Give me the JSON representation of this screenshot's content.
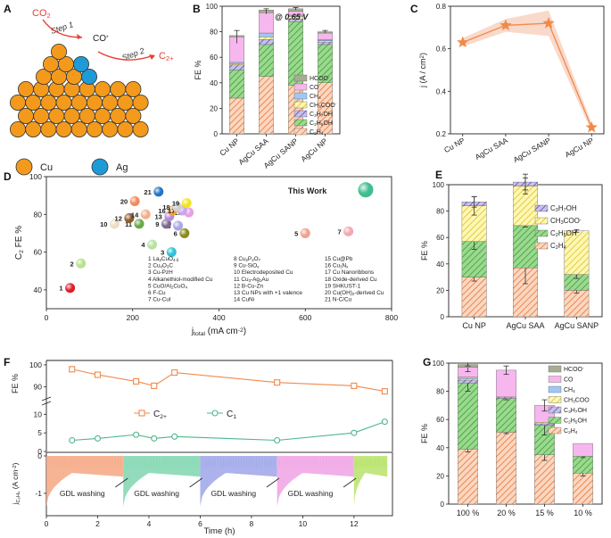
{
  "colors": {
    "orange": "#F08A4B",
    "orange_light": "#F6B58E",
    "green": "#54B94E",
    "purple": "#8A7FC9",
    "yellow": "#F2E04A",
    "blue": "#7BB5F2",
    "pink": "#F3A6E8",
    "gray": "#9DA08A",
    "cu": "#F39A1C",
    "ag": "#1E9BD7",
    "red": "#E84033",
    "c1_green": "#4DB68A"
  },
  "panelA": {
    "label": "A",
    "co2": "CO",
    "co2_sub": "2",
    "step1": "Step 1",
    "step2": "Step 2",
    "co": "CO",
    "co_sup": "*",
    "c2": "C",
    "c2_sub": "2+",
    "legend_cu": "Cu",
    "legend_ag": "Ag"
  },
  "chart_data": [
    {
      "panel": "B",
      "type": "bar",
      "stacked": true,
      "annotation": "@ 0.65 V",
      "ylabel": "FE %",
      "ylim": [
        0,
        100
      ],
      "yticks": [
        "0",
        "20",
        "40",
        "60",
        "80",
        "100"
      ],
      "categories": [
        "Cu NP",
        "AgCu SAA",
        "AgCu SANP",
        "AgCu NP"
      ],
      "series": [
        {
          "name": "C2H4",
          "label": "C",
          "sub": "2",
          "rest": "H",
          "sub2": "4",
          "values": [
            28,
            45,
            38,
            40
          ]
        },
        {
          "name": "C2H5OH",
          "label": "C",
          "sub": "2",
          "rest": "H",
          "sub2": "5",
          "tail": "OH",
          "values": [
            22,
            25,
            50,
            30
          ]
        },
        {
          "name": "C3H7OH",
          "label": "C",
          "sub": "3",
          "rest": "H",
          "sub2": "7",
          "tail": "OH",
          "values": [
            4,
            4,
            2,
            2
          ]
        },
        {
          "name": "CH3COO-",
          "label": "CH",
          "sub": "3",
          "rest": "COO",
          "sup": "-",
          "values": [
            1,
            2,
            2,
            1
          ]
        },
        {
          "name": "CH4",
          "label": "CH",
          "sub": "4",
          "values": [
            1,
            3,
            1,
            1
          ]
        },
        {
          "name": "CO",
          "label": "CO",
          "values": [
            20,
            16,
            3,
            5
          ]
        },
        {
          "name": "HCOO-",
          "label": "HCOO",
          "sup": "-",
          "values": [
            1,
            2,
            2,
            1
          ]
        }
      ]
    },
    {
      "panel": "C",
      "type": "line",
      "ylabel": "j (A / cm",
      "ylabel_sup": "2",
      "ylabel_end": ")",
      "ylim": [
        0.2,
        0.8
      ],
      "yticks": [
        "0.2",
        "0.4",
        "0.6",
        "0.8"
      ],
      "categories": [
        "Cu NP",
        "AgCu SAA",
        "AgCu SANP",
        "AgCu NP"
      ],
      "values": [
        0.63,
        0.71,
        0.72,
        0.23
      ],
      "band_low": [
        0.61,
        0.68,
        0.66,
        0.21
      ],
      "band_high": [
        0.65,
        0.74,
        0.78,
        0.25
      ]
    },
    {
      "panel": "D",
      "type": "scatter",
      "xlabel": "j",
      "xlabel_sub": "total",
      "xlabel_units": " (mA cm",
      "xlabel_sup": "-2",
      "xlabel_end": ")",
      "ylabel": "C",
      "ylabel_sub": "2",
      "ylabel_end": " FE %",
      "xlim": [
        0,
        800
      ],
      "ylim": [
        30,
        100
      ],
      "xticks": [
        "0",
        "200",
        "400",
        "600",
        "800"
      ],
      "yticks": [
        "40",
        "60",
        "80",
        "100"
      ],
      "points": [
        {
          "n": "1",
          "x": 55,
          "y": 41,
          "c": "#E01E2A"
        },
        {
          "n": "2",
          "x": 80,
          "y": 54,
          "c": "#B7E28C"
        },
        {
          "n": "3",
          "x": 290,
          "y": 60,
          "c": "#2BC3D6"
        },
        {
          "n": "4",
          "x": 245,
          "y": 64,
          "c": "#B5E2A2"
        },
        {
          "n": "5",
          "x": 600,
          "y": 70,
          "c": "#F2A091"
        },
        {
          "n": "6",
          "x": 320,
          "y": 70,
          "c": "#8A8A1E"
        },
        {
          "n": "7",
          "x": 700,
          "y": 71,
          "c": "#F4A7B0"
        },
        {
          "n": "8",
          "x": 305,
          "y": 74,
          "c": "#A7A7E6"
        },
        {
          "n": "9",
          "x": 278,
          "y": 75,
          "c": "#7A6B8E"
        },
        {
          "n": "10",
          "x": 158,
          "y": 75,
          "c": "#EFDCC2"
        },
        {
          "n": "11",
          "x": 215,
          "y": 75,
          "c": "#6AA848"
        },
        {
          "n": "12",
          "x": 192,
          "y": 78,
          "c": "#8B5A2B"
        },
        {
          "n": "13",
          "x": 285,
          "y": 79,
          "c": "#B88AD9"
        },
        {
          "n": "14",
          "x": 230,
          "y": 80,
          "c": "#F3B08B"
        },
        {
          "n": "15",
          "x": 330,
          "y": 81,
          "c": "#E7A0E4"
        },
        {
          "n": "16",
          "x": 293,
          "y": 82,
          "c": "#F0A43A"
        },
        {
          "n": "17",
          "x": 315,
          "y": 82,
          "c": "#C8A6E8"
        },
        {
          "n": "18",
          "x": 303,
          "y": 84,
          "c": "#CFCFCF"
        },
        {
          "n": "19",
          "x": 325,
          "y": 86,
          "c": "#F4E31E"
        },
        {
          "n": "20",
          "x": 205,
          "y": 87,
          "c": "#F08A5A"
        },
        {
          "n": "21",
          "x": 260,
          "y": 92,
          "c": "#2076C6"
        },
        {
          "n": "",
          "x": 740,
          "y": 93,
          "c": "#3FBE8E",
          "big": true
        }
      ],
      "this_work": "This Work",
      "refs": [
        {
          "parts": [
            [
              "1 La",
              "n"
            ],
            [
              "2",
              "sub"
            ],
            [
              "CuO",
              "n"
            ],
            [
              "4-δ",
              "sub"
            ]
          ]
        },
        {
          "parts": [
            [
              "2 Cu",
              "n"
            ],
            [
              "4",
              "sub"
            ],
            [
              "O",
              "n"
            ],
            [
              "3",
              "sub"
            ],
            [
              "C",
              "n"
            ]
          ]
        },
        {
          "parts": [
            [
              "3 Cu-PzH",
              "n"
            ]
          ]
        },
        {
          "parts": [
            [
              "4 Alkanethiol-modified Cu",
              "n"
            ]
          ]
        },
        {
          "parts": [
            [
              "5 CuO/Al",
              "n"
            ],
            [
              "2",
              "sub"
            ],
            [
              "CuO",
              "n"
            ],
            [
              "4",
              "sub"
            ]
          ]
        },
        {
          "parts": [
            [
              "6 F-Cu",
              "n"
            ]
          ]
        },
        {
          "parts": [
            [
              "7 Cu-CuI",
              "n"
            ]
          ]
        },
        {
          "parts": [
            [
              "8 Cu",
              "n"
            ],
            [
              "2",
              "sub"
            ],
            [
              "P",
              "n"
            ],
            [
              "2",
              "sub"
            ],
            [
              "O",
              "n"
            ],
            [
              "7",
              "sub"
            ]
          ]
        },
        {
          "parts": [
            [
              "9 Cu-SiO",
              "n"
            ],
            [
              "x",
              "sub"
            ]
          ]
        },
        {
          "parts": [
            [
              "10 Electrodeposited Cu",
              "n"
            ]
          ]
        },
        {
          "parts": [
            [
              "11 Cu",
              "n"
            ],
            [
              "3",
              "sub"
            ],
            [
              "-Ag",
              "n"
            ],
            [
              "1",
              "sub"
            ],
            [
              "Au",
              "n"
            ]
          ]
        },
        {
          "parts": [
            [
              "12 B-Cu-Zn",
              "n"
            ]
          ]
        },
        {
          "parts": [
            [
              "13 Cu NPs with +1 valence",
              "n"
            ]
          ]
        },
        {
          "parts": [
            [
              "14 CuNi",
              "n"
            ]
          ]
        },
        {
          "parts": [
            [
              "15 Cu@Pb",
              "n"
            ]
          ]
        },
        {
          "parts": [
            [
              "16 Cu",
              "n"
            ],
            [
              "3",
              "sub"
            ],
            [
              "N",
              "n"
            ],
            [
              "x",
              "sub"
            ]
          ]
        },
        {
          "parts": [
            [
              "17 Cu Nanoribbons",
              "n"
            ]
          ]
        },
        {
          "parts": [
            [
              "18 Oxide-derived Cu",
              "n"
            ]
          ]
        },
        {
          "parts": [
            [
              "19 SHKUST-1",
              "n"
            ]
          ]
        },
        {
          "parts": [
            [
              "20 Cu(OH)",
              "n"
            ],
            [
              "2",
              "sub"
            ],
            [
              "-derived Cu",
              "n"
            ]
          ]
        },
        {
          "parts": [
            [
              "21 N-C/Cu",
              "n"
            ]
          ]
        }
      ]
    },
    {
      "panel": "E",
      "type": "bar",
      "stacked": true,
      "ylabel": "FE %",
      "ylim": [
        0,
        100
      ],
      "yticks": [
        "0",
        "20",
        "40",
        "60",
        "80",
        "100"
      ],
      "categories": [
        "Cu NP",
        "AgCu SAA",
        "AgCu SANP"
      ],
      "series": [
        {
          "name": "C2H4",
          "label": "C",
          "sub": "2",
          "rest": "H",
          "sub2": "4",
          "values": [
            30,
            37,
            20
          ],
          "err": [
            3,
            12,
            2
          ]
        },
        {
          "name": "C2H5OH",
          "label": "C",
          "sub": "2",
          "rest": "H",
          "sub2": "5",
          "tail": "OH",
          "values": [
            27,
            32,
            12
          ],
          "err": [
            6,
            1,
            3
          ]
        },
        {
          "name": "CH3COO-",
          "label": "CH",
          "sub": "3",
          "rest": "COO",
          "sup": "-",
          "values": [
            27,
            30,
            33
          ],
          "err": [
            7,
            6,
            1
          ]
        },
        {
          "name": "C3H7OH",
          "label": "C",
          "sub": "3",
          "rest": "H",
          "sub2": "7",
          "tail": "OH",
          "values": [
            3,
            3,
            0
          ],
          "err": [
            4,
            6,
            0
          ]
        }
      ]
    },
    {
      "panel": "F",
      "type": "line",
      "top_ylabel": "FE %",
      "bottom_ylabel": "j",
      "bottom_ylabel_sub": "C₂H₄",
      "bottom_ylabel_end": " (A cm",
      "bottom_ylabel_sup": "-2",
      "bottom_ylabel_close": ")",
      "xlabel": "Time (h)",
      "xlim": [
        0,
        13.5
      ],
      "xticks": [
        "0",
        "2",
        "4",
        "6",
        "8",
        "10",
        "12"
      ],
      "top_yticks": [
        "100",
        "90",
        "10",
        "5",
        "0"
      ],
      "bottom_yticks": [
        "0",
        "-1"
      ],
      "series": [
        {
          "name": "C2+",
          "label": "C",
          "sub": "2+",
          "x": [
            1,
            2,
            3.5,
            4.2,
            5,
            9,
            12,
            13.2
          ],
          "y": [
            98,
            95.5,
            92.5,
            90.5,
            96.5,
            92,
            90.5,
            88
          ]
        },
        {
          "name": "C1",
          "label": "C",
          "sub": "1",
          "x": [
            1,
            2,
            3.5,
            4.2,
            5,
            9,
            12,
            13.2
          ],
          "y": [
            3,
            3.5,
            4.5,
            3.5,
            4,
            3,
            5,
            8
          ]
        }
      ],
      "segments": [
        {
          "x0": 0,
          "x1": 3,
          "c": "#F5A783"
        },
        {
          "x0": 3,
          "x1": 6,
          "c": "#7FD6B0"
        },
        {
          "x0": 6,
          "x1": 9,
          "c": "#9EA5E8"
        },
        {
          "x0": 9,
          "x1": 12,
          "c": "#F0A2E4"
        },
        {
          "x0": 12,
          "x1": 13.3,
          "c": "#B8E36A"
        }
      ],
      "washing_labels": [
        "GDL washing",
        "GDL washing",
        "GDL washing",
        "GDL washing"
      ]
    },
    {
      "panel": "G",
      "type": "bar",
      "stacked": true,
      "ylabel": "FE %",
      "ylim": [
        0,
        100
      ],
      "yticks": [
        "0",
        "20",
        "40",
        "60",
        "80",
        "100"
      ],
      "categories": [
        "100 %",
        "20 %",
        "15 %",
        "10 %"
      ],
      "series": [
        {
          "name": "C2H4",
          "label": "C",
          "sub": "2",
          "rest": "H",
          "sub2": "4",
          "values": [
            39,
            51,
            35,
            22
          ],
          "err": [
            2,
            1,
            4,
            2
          ]
        },
        {
          "name": "C2H5OH",
          "label": "C",
          "sub": "2",
          "rest": "H",
          "sub2": "5",
          "tail": "OH",
          "values": [
            47,
            24,
            21,
            12
          ],
          "err": [
            6,
            1,
            7,
            1
          ]
        },
        {
          "name": "C3H7OH",
          "label": "C",
          "sub": "3",
          "rest": "H",
          "sub2": "7",
          "tail": "OH",
          "values": [
            2,
            1,
            1,
            0
          ],
          "err": [
            0,
            0,
            0,
            0
          ]
        },
        {
          "name": "CH3COO-",
          "label": "CH",
          "sub": "3",
          "rest": "COO",
          "values": [
            1,
            0,
            1,
            0
          ],
          "err": [
            0,
            0,
            0,
            0
          ]
        },
        {
          "name": "CH4",
          "label": "CH",
          "sub": "4",
          "values": [
            1,
            0,
            0,
            0
          ],
          "err": [
            0,
            0,
            0,
            0
          ]
        },
        {
          "name": "CO",
          "label": "CO",
          "values": [
            7,
            19,
            12,
            9
          ],
          "err": [
            3,
            3,
            4,
            0
          ]
        },
        {
          "name": "HCOO-",
          "label": "HCOO",
          "sup": "-",
          "values": [
            2,
            0,
            0,
            0
          ],
          "err": [
            1,
            0,
            0,
            0
          ]
        }
      ]
    }
  ],
  "panel_letters": [
    "A",
    "B",
    "C",
    "D",
    "E",
    "F",
    "G"
  ]
}
